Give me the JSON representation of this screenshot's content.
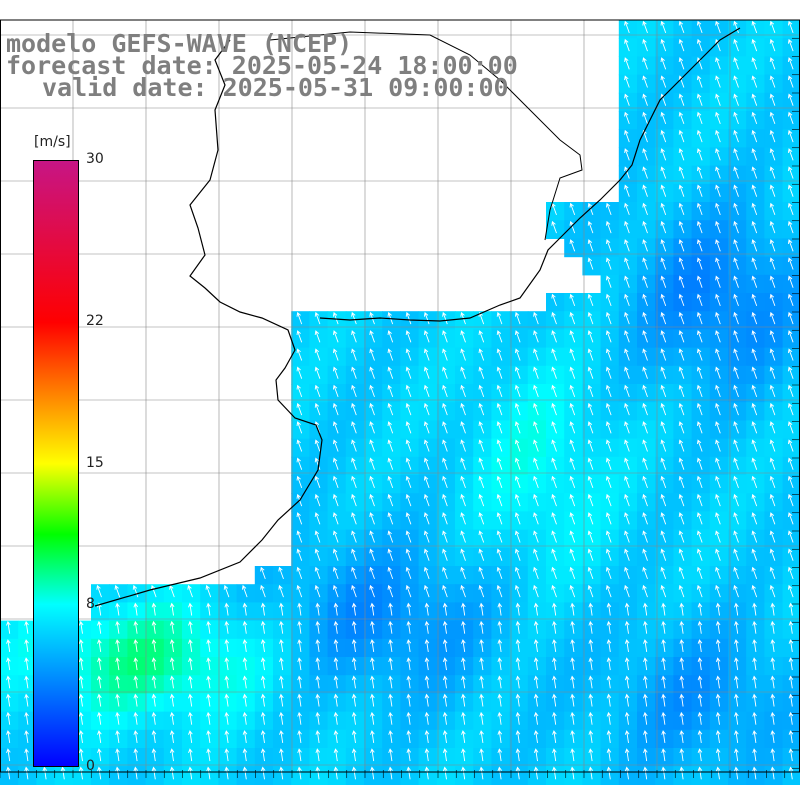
{
  "title": {
    "line1": "modelo GEFS-WAVE (NCEP)",
    "line2": "forecast date: 2025-05-24 18:00:00",
    "line3": "valid date: 2025-05-31 09:00:00"
  },
  "colorbar": {
    "units": "[m/s]",
    "min": 0,
    "max": 30,
    "ticks": [
      {
        "value": 30,
        "label": "30"
      },
      {
        "value": 22,
        "label": "22"
      },
      {
        "value": 15,
        "label": "15"
      },
      {
        "value": 8,
        "label": "8"
      },
      {
        "value": 0,
        "label": "0"
      }
    ],
    "stops": [
      {
        "value": 0,
        "color": "#0000ff"
      },
      {
        "value": 4,
        "color": "#0080ff"
      },
      {
        "value": 8,
        "color": "#00ffff"
      },
      {
        "value": 11.5,
        "color": "#00ff00"
      },
      {
        "value": 15,
        "color": "#ffff00"
      },
      {
        "value": 18.5,
        "color": "#ff8000"
      },
      {
        "value": 22,
        "color": "#ff0000"
      },
      {
        "value": 30,
        "color": "#c71585"
      }
    ]
  },
  "map": {
    "land_color": "#ffffff",
    "grid_color": "#888888",
    "coast_color": "#000000",
    "arrow_color": "#ffffff"
  }
}
